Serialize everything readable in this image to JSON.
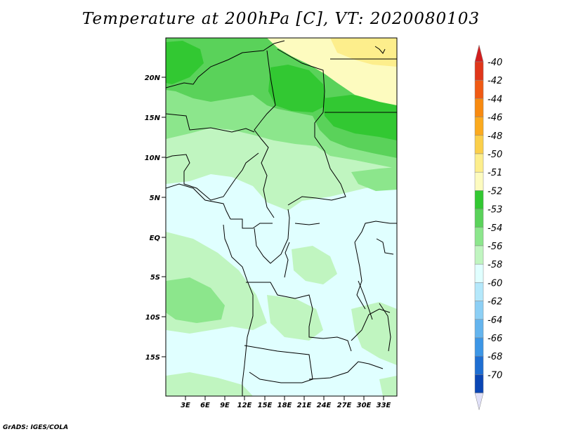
{
  "title": "Temperature at 200hPa [C], VT: 2020080103",
  "credit": "GrADS: IGES/COLA",
  "map": {
    "lon_range": [
      0,
      35
    ],
    "lat_range": [
      -20,
      25
    ],
    "lon_labels": [
      "3E",
      "6E",
      "9E",
      "12E",
      "15E",
      "18E",
      "21E",
      "24E",
      "27E",
      "30E",
      "33E"
    ],
    "lat_labels": [
      "20N",
      "15N",
      "10N",
      "5N",
      "EQ",
      "5S",
      "10S",
      "15S"
    ]
  },
  "colorbar": {
    "labels": [
      "-40",
      "-42",
      "-44",
      "-46",
      "-48",
      "-50",
      "-51",
      "-52",
      "-53",
      "-54",
      "-56",
      "-58",
      "-60",
      "-62",
      "-64",
      "-66",
      "-68",
      "-70"
    ],
    "colors": [
      "#e0361a",
      "#f05a14",
      "#f88a10",
      "#fbaa1e",
      "#fbcf4a",
      "#fdee8c",
      "#fdfbbf",
      "#32c832",
      "#5ad25a",
      "#8ce68c",
      "#c0f5c0",
      "#e0ffff",
      "#b4e8fb",
      "#8ccff5",
      "#64b4ee",
      "#3c96e6",
      "#1e6ed2",
      "#0a46b4"
    ],
    "cap_top_color": "#d21e1e",
    "cap_bottom_color": "#e0e0f8"
  }
}
